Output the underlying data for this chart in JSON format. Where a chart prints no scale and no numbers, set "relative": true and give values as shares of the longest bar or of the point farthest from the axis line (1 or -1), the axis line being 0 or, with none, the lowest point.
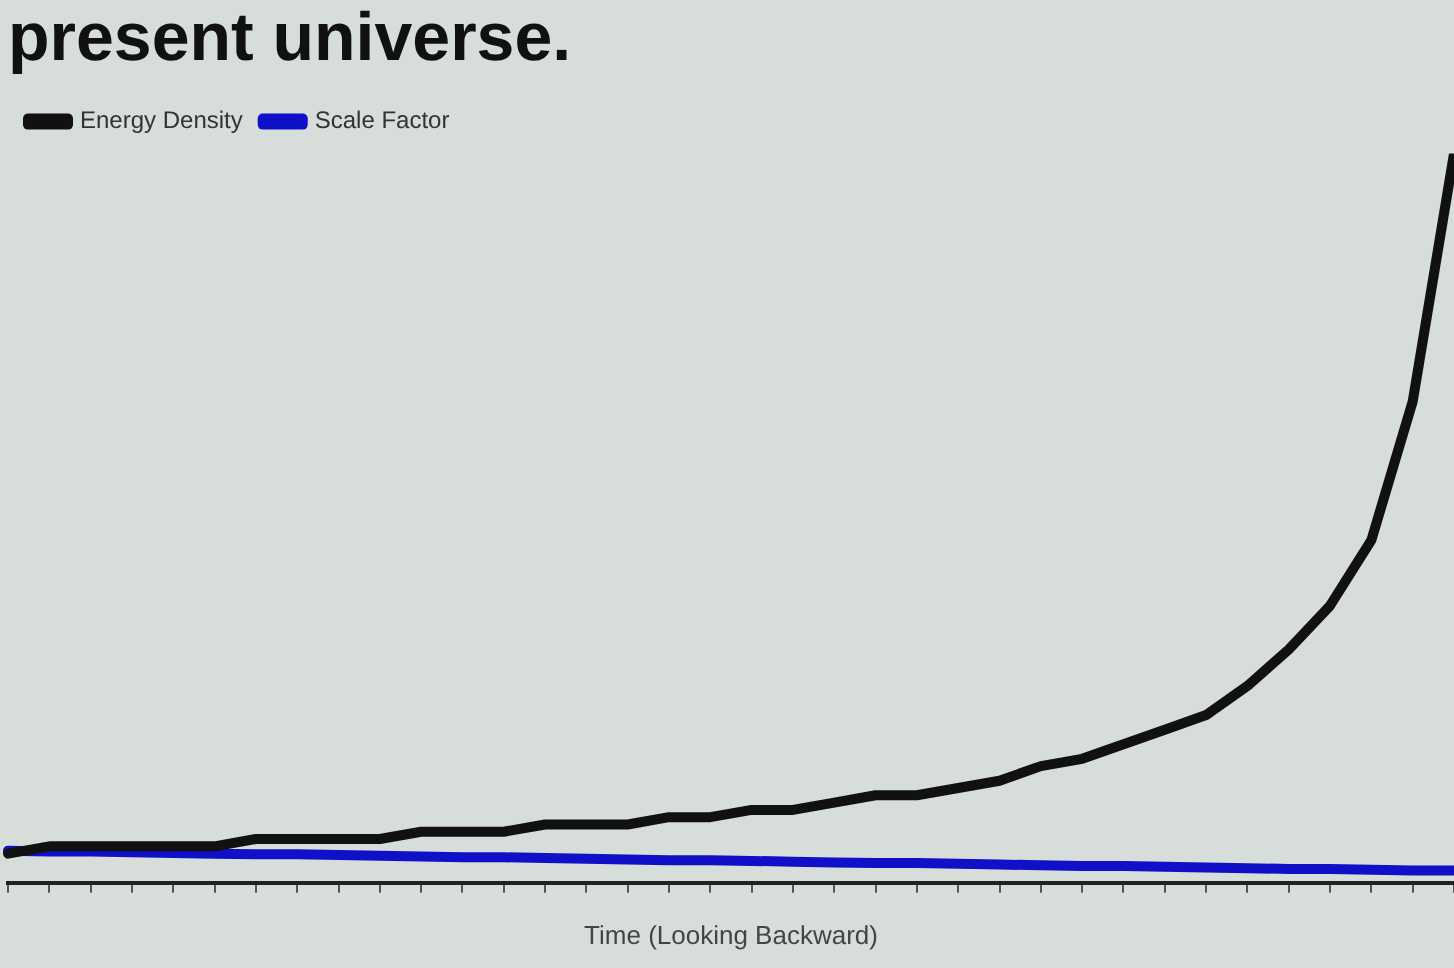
{
  "chart_data": {
    "type": "line",
    "title": "present universe.",
    "xlabel": "Time (Looking Backward)",
    "relative": true,
    "tick_labels": false,
    "grid": false,
    "legend": "top left",
    "marker": "none",
    "line_style": "solid",
    "categories": [
      null,
      null,
      null,
      null,
      null,
      null,
      null,
      null,
      null,
      null,
      null,
      null,
      null,
      null,
      null,
      null,
      null,
      null,
      null,
      null,
      null,
      null,
      null,
      null,
      null,
      null,
      null,
      null,
      null,
      null,
      null,
      null,
      null,
      null,
      null,
      null
    ],
    "series": [
      {
        "name": "Energy Density",
        "color": "#111111",
        "values": [
          0.04,
          0.05,
          0.05,
          0.05,
          0.05,
          0.05,
          0.06,
          0.06,
          0.06,
          0.06,
          0.07,
          0.07,
          0.07,
          0.08,
          0.08,
          0.08,
          0.09,
          0.09,
          0.1,
          0.1,
          0.11,
          0.12,
          0.12,
          0.13,
          0.14,
          0.16,
          0.17,
          0.19,
          0.21,
          0.23,
          0.27,
          0.32,
          0.38,
          0.47,
          0.66,
          1
        ]
      },
      {
        "name": "Scale Factor",
        "color": "#1010c8",
        "values": [
          0.044,
          0.043,
          0.043,
          0.042,
          0.041,
          0.04,
          0.039,
          0.039,
          0.038,
          0.037,
          0.036,
          0.035,
          0.035,
          0.034,
          0.033,
          0.032,
          0.031,
          0.031,
          0.03,
          0.029,
          0.028,
          0.027,
          0.027,
          0.026,
          0.025,
          0.024,
          0.023,
          0.023,
          0.022,
          0.021,
          0.02,
          0.019,
          0.019,
          0.018,
          0.017,
          0.017
        ]
      }
    ]
  }
}
